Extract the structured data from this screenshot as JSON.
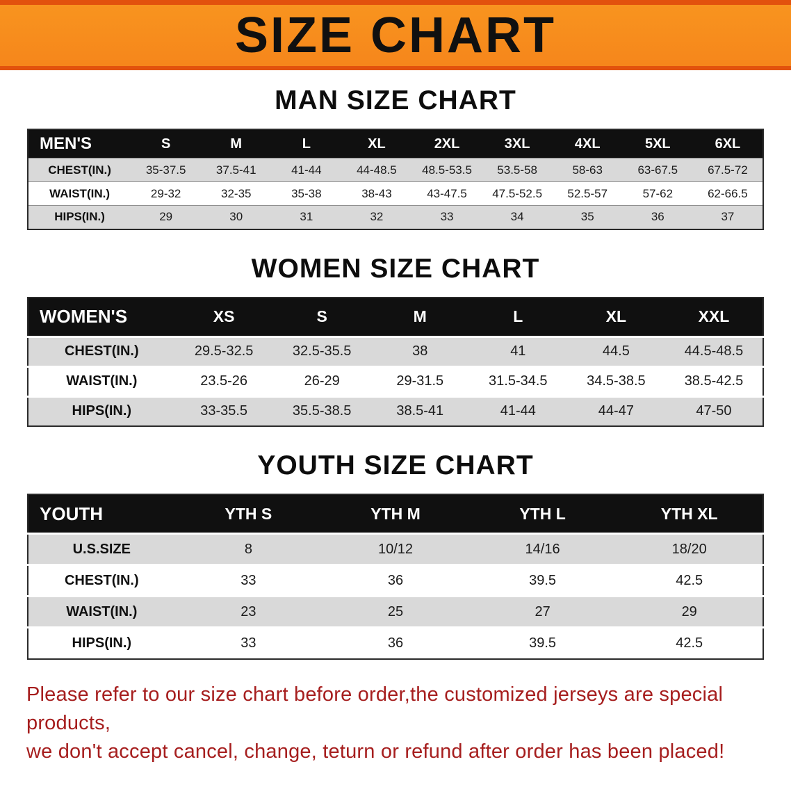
{
  "banner": {
    "title": "SIZE CHART",
    "bg_color": "#f6861b",
    "accent_color": "#e2520d",
    "text_color": "#101010"
  },
  "sections": [
    {
      "id": "men",
      "heading": "MAN SIZE CHART",
      "table": {
        "header": [
          "MEN'S",
          "S",
          "M",
          "L",
          "XL",
          "2XL",
          "3XL",
          "4XL",
          "5XL",
          "6XL"
        ],
        "rows": [
          [
            "CHEST(IN.)",
            "35-37.5",
            "37.5-41",
            "41-44",
            "44-48.5",
            "48.5-53.5",
            "53.5-58",
            "58-63",
            "63-67.5",
            "67.5-72"
          ],
          [
            "WAIST(IN.)",
            "29-32",
            "32-35",
            "35-38",
            "38-43",
            "43-47.5",
            "47.5-52.5",
            "52.5-57",
            "57-62",
            "62-66.5"
          ],
          [
            "HIPS(IN.)",
            "29",
            "30",
            "31",
            "32",
            "33",
            "34",
            "35",
            "36",
            "37"
          ]
        ]
      }
    },
    {
      "id": "women",
      "heading": "WOMEN SIZE CHART",
      "table": {
        "header": [
          "WOMEN'S",
          "XS",
          "S",
          "M",
          "L",
          "XL",
          "XXL"
        ],
        "rows": [
          [
            "CHEST(IN.)",
            "29.5-32.5",
            "32.5-35.5",
            "38",
            "41",
            "44.5",
            "44.5-48.5"
          ],
          [
            "WAIST(IN.)",
            "23.5-26",
            "26-29",
            "29-31.5",
            "31.5-34.5",
            "34.5-38.5",
            "38.5-42.5"
          ],
          [
            "HIPS(IN.)",
            "33-35.5",
            "35.5-38.5",
            "38.5-41",
            "41-44",
            "44-47",
            "47-50"
          ]
        ]
      }
    },
    {
      "id": "youth",
      "heading": "YOUTH SIZE CHART",
      "table": {
        "header": [
          "YOUTH",
          "YTH S",
          "YTH M",
          "YTH L",
          "YTH XL"
        ],
        "rows": [
          [
            "U.S.SIZE",
            "8",
            "10/12",
            "14/16",
            "18/20"
          ],
          [
            "CHEST(IN.)",
            "33",
            "36",
            "39.5",
            "42.5"
          ],
          [
            "WAIST(IN.)",
            "23",
            "25",
            "27",
            "29"
          ],
          [
            "HIPS(IN.)",
            "33",
            "36",
            "39.5",
            "42.5"
          ]
        ]
      }
    }
  ],
  "footer": {
    "line1": "Please refer to our size chart before order,the customized jerseys are special products,",
    "line2": "we don't accept cancel, change, teturn or refund after order has been placed!",
    "text_color": "#a61e1e"
  }
}
